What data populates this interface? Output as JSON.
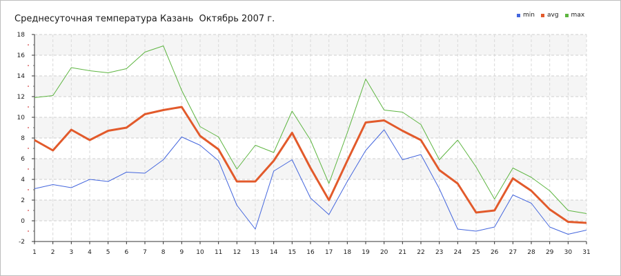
{
  "chart_data": {
    "type": "line",
    "title": "Среднесуточная температура Казань  Октябрь 2007 г.",
    "xlabel": "",
    "ylabel": "",
    "x": [
      1,
      2,
      3,
      4,
      5,
      6,
      7,
      8,
      9,
      10,
      11,
      12,
      13,
      14,
      15,
      16,
      17,
      18,
      19,
      20,
      21,
      22,
      23,
      24,
      25,
      26,
      27,
      28,
      29,
      30,
      31
    ],
    "ylim": [
      -2,
      18
    ],
    "yticks": [
      -2,
      0,
      2,
      4,
      6,
      8,
      10,
      12,
      14,
      16,
      18
    ],
    "grid": true,
    "legend_position": "top-right",
    "series": [
      {
        "name": "min",
        "color": "#4466dd",
        "width": 1,
        "values": [
          3.1,
          3.5,
          3.2,
          4.0,
          3.8,
          4.7,
          4.6,
          5.9,
          8.1,
          7.3,
          5.8,
          1.5,
          -0.8,
          4.8,
          5.9,
          2.2,
          0.6,
          3.8,
          6.8,
          8.8,
          5.9,
          6.4,
          3.1,
          -0.8,
          -1.0,
          -0.6,
          2.5,
          1.7,
          -0.6,
          -1.3,
          -0.9
        ]
      },
      {
        "name": "avg",
        "color": "#e25a2b",
        "width": 3,
        "values": [
          7.8,
          6.8,
          8.8,
          7.8,
          8.7,
          9.0,
          10.3,
          10.7,
          11.0,
          8.2,
          6.9,
          3.8,
          3.8,
          5.8,
          8.5,
          5.1,
          2.0,
          5.8,
          9.5,
          9.7,
          8.7,
          7.8,
          4.9,
          3.6,
          0.8,
          1.0,
          4.1,
          2.9,
          1.1,
          -0.1,
          -0.2
        ]
      },
      {
        "name": "max",
        "color": "#5db540",
        "width": 1,
        "values": [
          11.9,
          12.1,
          14.8,
          14.5,
          14.3,
          14.7,
          16.3,
          16.9,
          12.6,
          9.1,
          8.1,
          5.0,
          7.3,
          6.6,
          10.6,
          7.8,
          3.6,
          8.5,
          13.7,
          10.7,
          10.5,
          9.3,
          5.9,
          7.8,
          5.2,
          2.1,
          5.1,
          4.2,
          2.9,
          1.0,
          0.7
        ]
      }
    ]
  }
}
